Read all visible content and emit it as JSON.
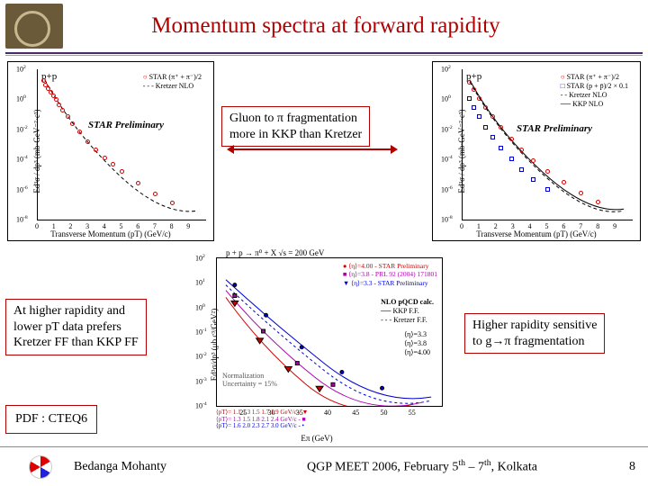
{
  "title": "Momentum spectra at forward rapidity",
  "annotations": {
    "gluon": {
      "line1": "Gluon to π fragmentation",
      "line2": "more in KKP than Kretzer"
    },
    "rapidity": {
      "line1": "At higher rapidity and",
      "line2": "lower pT data prefers",
      "line3": "Kretzer FF than KKP FF"
    },
    "higher": {
      "line1": "Higher rapidity sensitive",
      "line2": "to g→π fragmentation"
    },
    "pdf": "PDF : CTEQ6"
  },
  "chart_left": {
    "type": "scatter-log",
    "collision_label": "p+p",
    "star_label": "STAR Preliminary",
    "ylab": "Ed³σ / dp³ (mb·GeV⁻²·c³)",
    "xlab": "Transverse Momentum (pT) (GeV/c)",
    "legend": [
      "STAR (π⁺ + π⁻)/2",
      "Kretzer NLO"
    ],
    "legend_markers": [
      "open-circle-red",
      "dashed-line-black"
    ],
    "xlim": [
      0,
      10
    ],
    "x_ticks": [
      0,
      1,
      2,
      3,
      4,
      5,
      6,
      7,
      8,
      9
    ],
    "ylim_exp": [
      -8,
      2
    ],
    "y_tick_exps": [
      -8,
      -6,
      -4,
      -2,
      0,
      2
    ],
    "data_points_xy_exp": [
      [
        0.35,
        1.2
      ],
      [
        0.5,
        0.95
      ],
      [
        0.65,
        0.7
      ],
      [
        0.8,
        0.45
      ],
      [
        0.95,
        0.2
      ],
      [
        1.1,
        -0.05
      ],
      [
        1.3,
        -0.4
      ],
      [
        1.5,
        -0.75
      ],
      [
        1.8,
        -1.2
      ],
      [
        2.1,
        -1.65
      ],
      [
        2.5,
        -2.2
      ],
      [
        3.0,
        -2.85
      ],
      [
        3.5,
        -3.4
      ],
      [
        4.0,
        -3.9
      ],
      [
        4.5,
        -4.35
      ],
      [
        5.0,
        -4.8
      ],
      [
        6.0,
        -5.6
      ],
      [
        7.0,
        -6.3
      ],
      [
        8.0,
        -6.9
      ]
    ],
    "curve_color": "#000000",
    "marker_color": "#d00000",
    "title_fontsize": 11
  },
  "chart_right_top": {
    "type": "scatter-log",
    "collision_label": "p+p",
    "star_label": "STAR Preliminary",
    "ylab": "Ed³σ / dp³ (mb·GeV⁻²·c³)",
    "xlab": "Transverse Momentum (pT) (GeV/c)",
    "legend": [
      "STAR (π⁺ + π⁻)/2",
      "STAR (p + p̄)/2 × 0.1",
      "Kretzer NLO",
      "KKP NLO"
    ],
    "legend_markers": [
      "open-circle-red",
      "open-square-blue",
      "dashed-line-black",
      "solid-line-black"
    ],
    "xlim": [
      0,
      10
    ],
    "x_ticks": [
      0,
      1,
      2,
      3,
      4,
      5,
      6,
      7,
      8,
      9
    ],
    "ylim_exp": [
      -8,
      2
    ],
    "y_tick_exps": [
      -8,
      -6,
      -4,
      -2,
      0,
      2
    ],
    "series1_xy_exp": [
      [
        0.4,
        1.1
      ],
      [
        0.7,
        0.6
      ],
      [
        1.0,
        0.05
      ],
      [
        1.4,
        -0.6
      ],
      [
        1.8,
        -1.2
      ],
      [
        2.3,
        -1.9
      ],
      [
        2.9,
        -2.7
      ],
      [
        3.5,
        -3.4
      ],
      [
        4.2,
        -4.1
      ],
      [
        5.0,
        -4.8
      ],
      [
        6.0,
        -5.55
      ],
      [
        7.0,
        -6.25
      ],
      [
        8.0,
        -6.85
      ]
    ],
    "series2_xy_exp": [
      [
        0.4,
        0.0
      ],
      [
        0.7,
        -0.6
      ],
      [
        1.0,
        -1.2
      ],
      [
        1.4,
        -1.9
      ],
      [
        1.8,
        -2.55
      ],
      [
        2.3,
        -3.25
      ],
      [
        2.9,
        -4.0
      ],
      [
        3.5,
        -4.7
      ],
      [
        4.2,
        -5.35
      ],
      [
        5.0,
        -6.0
      ]
    ],
    "marker1_color": "#d00000",
    "marker2_color": "#0000d0"
  },
  "chart_center": {
    "type": "scatter-log",
    "header": "p + p → π⁰ + X   √s = 200 GeV",
    "ylab": "Ed³σ/dp³ (μb c³/GeV²)",
    "xlab": "Eπ (GeV)",
    "legend_top": [
      "⟨η⟩=4.00 - STAR Preliminary",
      "⟨η⟩=3.8 - PRL 92 (2004) 171801",
      "⟨η⟩=3.3 - STAR Preliminary"
    ],
    "legend_top_colors": [
      "#d00000",
      "#b000b0",
      "#0000d0"
    ],
    "legend_mid": [
      "NLO pQCD calc.",
      "KKP F.F.",
      "Kretzer F.F."
    ],
    "legend_eta": [
      "⟨η⟩=3.3",
      "⟨η⟩=3.8",
      "⟨η⟩=4.00"
    ],
    "norm_label": "Normalization\nUncertainty = 15%",
    "pt_row": [
      "⟨pT⟩= 1.1  1.3  1.5  1.7  1.9  GeV/c  - ▼",
      "⟨pT⟩= 1.3  1.5  1.8  2.1  2.4  GeV/c  - ■",
      "⟨pT⟩= 1.6  2.0  2.3  2.7  3.0  GeV/c  - •"
    ],
    "pt_row_colors": [
      "#d00000",
      "#b000b0",
      "#0000d0"
    ],
    "xlim": [
      20,
      60
    ],
    "x_ticks": [
      25,
      30,
      35,
      40,
      45,
      50,
      55
    ],
    "ylim_exp": [
      -4,
      2
    ],
    "y_tick_exps": [
      -4,
      -3,
      -2,
      -1,
      0,
      1,
      2
    ]
  },
  "footer": {
    "author": "Bedanga Mohanty",
    "venue_prefix": "QGP MEET 2006, February 5",
    "venue_mid": " – 7",
    "venue_suffix": ", Kolkata",
    "page": "8"
  },
  "colors": {
    "title": "#b00000",
    "annot_border": "#b00000",
    "underline": "#4a2a6a"
  }
}
